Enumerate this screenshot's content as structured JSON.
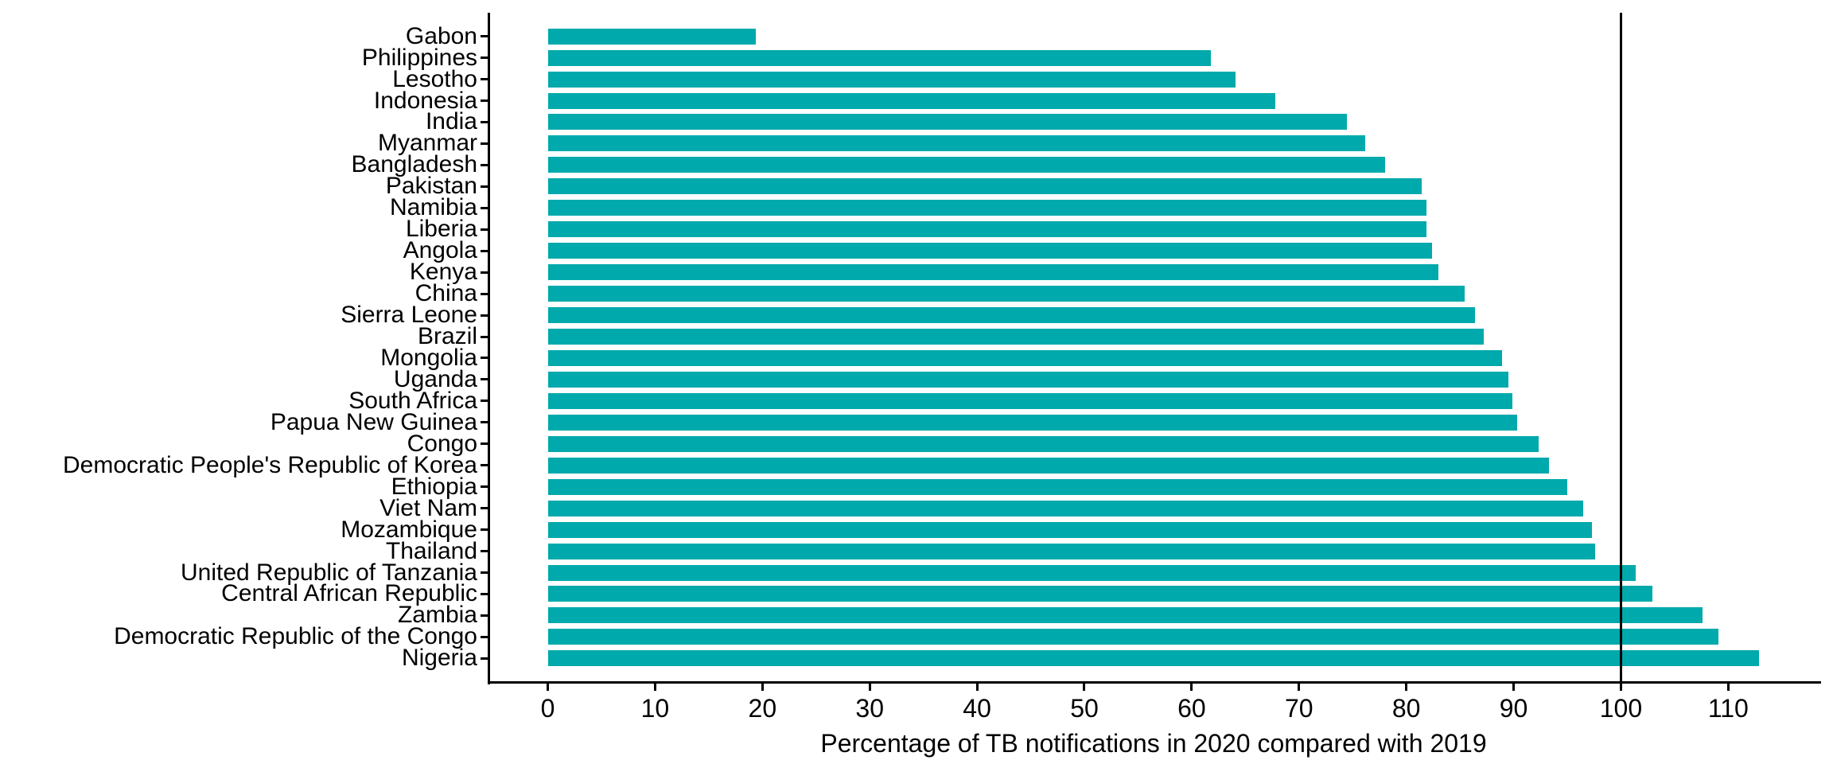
{
  "chart_data": {
    "type": "bar",
    "orientation": "horizontal",
    "title": "",
    "xlabel": "Percentage of TB notifications in 2020 compared with 2019",
    "ylabel": "",
    "categories": [
      "Gabon",
      "Philippines",
      "Lesotho",
      "Indonesia",
      "India",
      "Myanmar",
      "Bangladesh",
      "Pakistan",
      "Namibia",
      "Liberia",
      "Angola",
      "Kenya",
      "China",
      "Sierra Leone",
      "Brazil",
      "Mongolia",
      "Uganda",
      "South Africa",
      "Papua New Guinea",
      "Congo",
      "Democratic People's Republic of Korea",
      "Ethiopia",
      "Viet Nam",
      "Mozambique",
      "Thailand",
      "United Republic of Tanzania",
      "Central African Republic",
      "Zambia",
      "Democratic Republic of the Congo",
      "Nigeria"
    ],
    "values": [
      19.4,
      61.8,
      64.1,
      67.8,
      74.5,
      76.2,
      78.0,
      81.4,
      81.9,
      81.9,
      82.4,
      83.0,
      85.4,
      86.4,
      87.2,
      88.9,
      89.5,
      89.9,
      90.3,
      92.3,
      93.3,
      95.0,
      96.5,
      97.3,
      97.6,
      101.4,
      102.9,
      107.6,
      109.1,
      112.9
    ],
    "x_ticks": [
      "0",
      "10",
      "20",
      "30",
      "40",
      "50",
      "60",
      "70",
      "80",
      "90",
      "100",
      "110"
    ],
    "x_tick_values": [
      0,
      10,
      20,
      30,
      40,
      50,
      60,
      70,
      80,
      90,
      100,
      110
    ],
    "xlim": [
      -5.6,
      118.5
    ],
    "reference_line_x": 100,
    "bar_color": "#00a9ac",
    "axis_color": "#000000",
    "text_color": "#000000",
    "grid": "off",
    "legend": "none"
  }
}
